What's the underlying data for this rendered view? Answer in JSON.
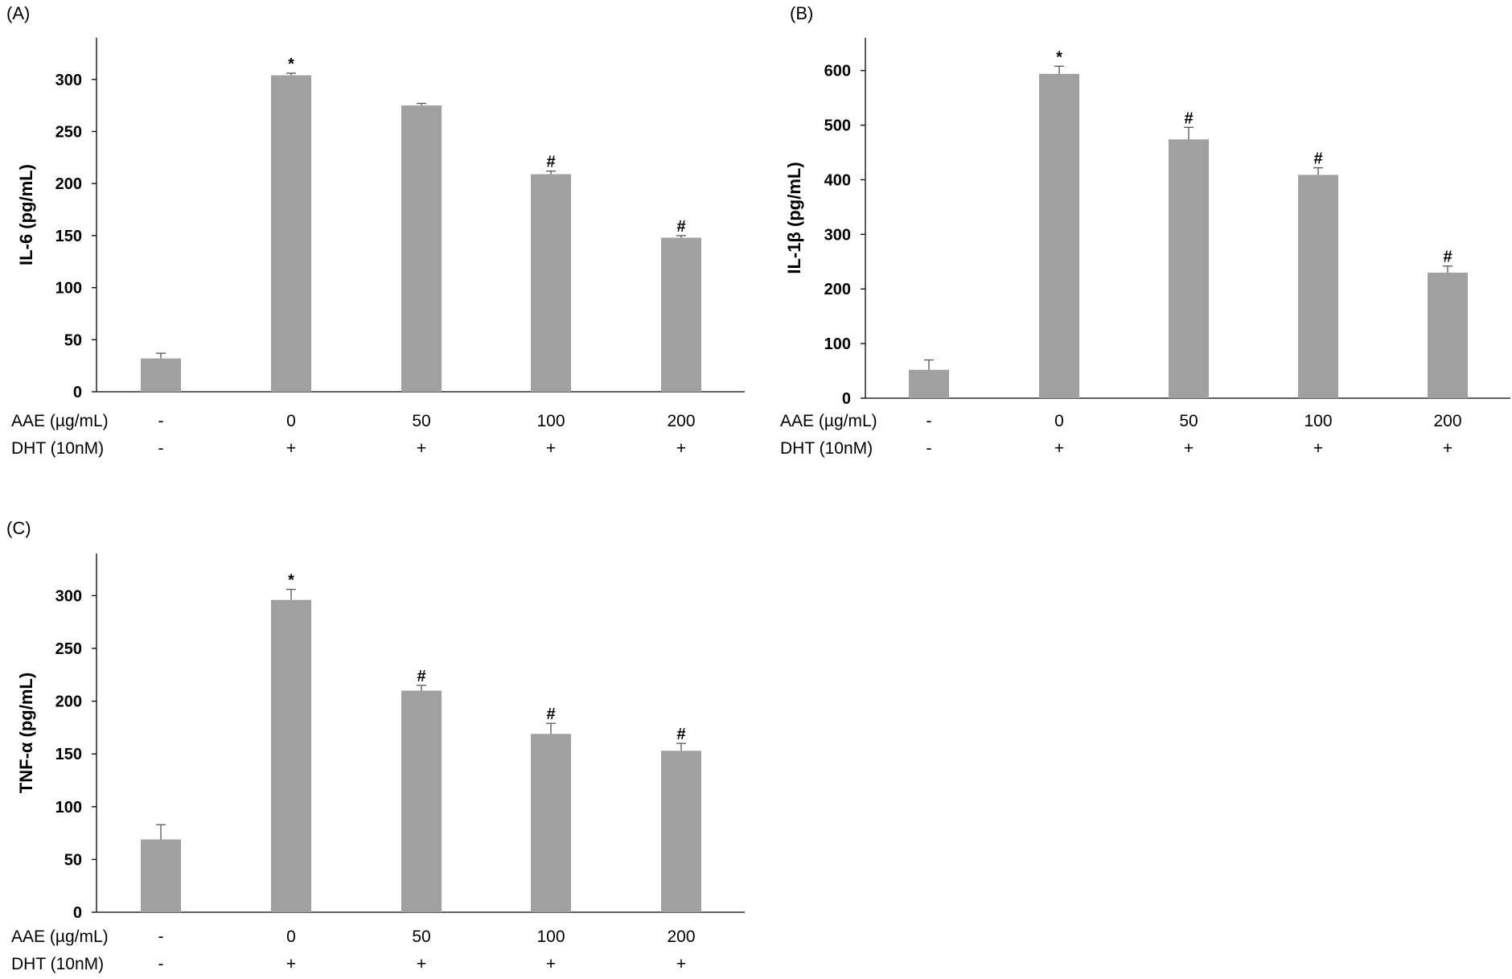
{
  "chart_data": [
    {
      "panel_label": "(A)",
      "type": "bar",
      "ylabel": "IL-6 (pg/mL)",
      "ylim": [
        0,
        340
      ],
      "yticks": [
        0,
        50,
        100,
        150,
        200,
        250,
        300
      ],
      "values": [
        32,
        304,
        275,
        209,
        148
      ],
      "errors": [
        5,
        2,
        2,
        3,
        2
      ],
      "significance": [
        "",
        "*",
        "",
        "#",
        "#"
      ],
      "bar_color": "#a0a0a0",
      "row_labels": [
        "AAE (µg/mL)",
        "DHT (10nM)"
      ],
      "aae": [
        "-",
        "0",
        "50",
        "100",
        "200"
      ],
      "dht": [
        "-",
        "+",
        "+",
        "+",
        "+"
      ]
    },
    {
      "panel_label": "(B)",
      "type": "bar",
      "ylabel": "IL-1β (pg/mL)",
      "ylim": [
        0,
        660
      ],
      "yticks": [
        0,
        100,
        200,
        300,
        400,
        500,
        600
      ],
      "values": [
        52,
        594,
        474,
        409,
        230
      ],
      "errors": [
        18,
        14,
        22,
        13,
        12
      ],
      "significance": [
        "",
        "*",
        "#",
        "#",
        "#"
      ],
      "bar_color": "#a0a0a0",
      "row_labels": [
        "AAE (µg/mL)",
        "DHT (10nM)"
      ],
      "aae": [
        "-",
        "0",
        "50",
        "100",
        "200"
      ],
      "dht": [
        "-",
        "+",
        "+",
        "+",
        "+"
      ]
    },
    {
      "panel_label": "(C)",
      "type": "bar",
      "ylabel": "TNF-α (pg/mL)",
      "ylim": [
        0,
        340
      ],
      "yticks": [
        0,
        50,
        100,
        150,
        200,
        250,
        300
      ],
      "values": [
        69,
        296,
        210,
        169,
        153
      ],
      "errors": [
        14,
        10,
        5,
        10,
        7
      ],
      "significance": [
        "",
        "*",
        "#",
        "#",
        "#"
      ],
      "bar_color": "#a0a0a0",
      "row_labels": [
        "AAE (µg/mL)",
        "DHT (10nM)"
      ],
      "aae": [
        "-",
        "0",
        "50",
        "100",
        "200"
      ],
      "dht": [
        "-",
        "+",
        "+",
        "+",
        "+"
      ]
    }
  ]
}
